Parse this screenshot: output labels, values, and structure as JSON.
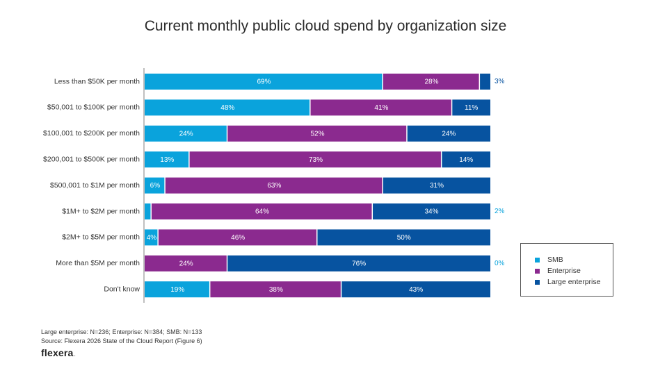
{
  "chart_data": {
    "type": "bar",
    "orientation": "horizontal",
    "stacked": true,
    "normalized": true,
    "title": "Current monthly public cloud spend by organization size",
    "xlabel": "",
    "ylabel": "",
    "xlim": [
      0,
      100
    ],
    "grid": false,
    "legend_position": "right",
    "categories": [
      "Less than $50K per month",
      "$50,001 to $100K per month",
      "$100,001 to $200K per month",
      "$200,001 to $500K per month",
      "$500,001 to $1M per month",
      "$1M+ to $2M per month",
      "$2M+ to $5M per month",
      "More than $5M per month",
      "Don't know"
    ],
    "series": [
      {
        "name": "SMB",
        "color": "#0aa3dc",
        "values": [
          69,
          48,
          24,
          13,
          6,
          2,
          4,
          0,
          19
        ]
      },
      {
        "name": "Enterprise",
        "color": "#8b2a8f",
        "values": [
          28,
          41,
          52,
          73,
          63,
          64,
          46,
          24,
          38
        ]
      },
      {
        "name": "Large enterprise",
        "color": "#0753a0",
        "values": [
          3,
          11,
          24,
          14,
          31,
          34,
          50,
          76,
          43
        ]
      }
    ],
    "labels_outside": [
      {
        "category_index": 0,
        "series_index": 2,
        "text": "3%"
      },
      {
        "category_index": 5,
        "series_index": 0,
        "text": "2%"
      },
      {
        "category_index": 7,
        "series_index": 0,
        "text": "0%"
      }
    ]
  },
  "legend": {
    "items": [
      {
        "label": "SMB",
        "color": "#0aa3dc"
      },
      {
        "label": "Enterprise",
        "color": "#8b2a8f"
      },
      {
        "label": "Large enterprise",
        "color": "#0753a0"
      }
    ]
  },
  "footer": {
    "sample_note": "Large enterprise: N=236; Enterprise: N=384; SMB: N=133",
    "source": "Source: Flexera 2026 State of the Cloud Report (Figure 6)"
  },
  "brand": {
    "logo_text": "flexera",
    "logo_dot": "."
  }
}
